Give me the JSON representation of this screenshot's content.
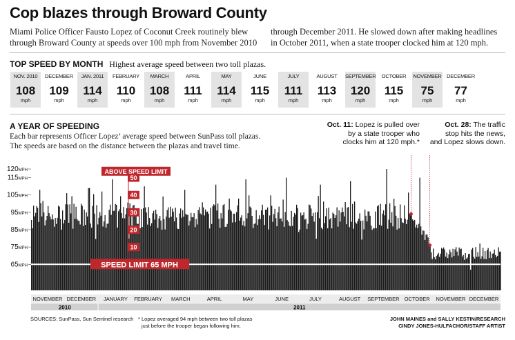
{
  "headline": "Cop blazes through Broward County",
  "intro_col1_line1": "Miami Police Officer Fausto Lopez of Coconut Creek routinely blew",
  "intro_col1_line2": "through Broward County at speeds over 100 mph from November 2010",
  "intro_col2_line1": "through December 2011. He slowed down after making headlines",
  "intro_col2_line2": "in October 2011, when a state trooper clocked him at 120 mph.",
  "top_speed": {
    "title": "TOP SPEED BY MONTH",
    "subtitle": "Highest average speed between two toll plazas.",
    "unit": "mph",
    "months": [
      {
        "label": "NOV. 2010",
        "value": "108"
      },
      {
        "label": "DECEMBER",
        "value": "109"
      },
      {
        "label": "JAN. 2011",
        "value": "114"
      },
      {
        "label": "FEBRUARY",
        "value": "110"
      },
      {
        "label": "MARCH",
        "value": "108"
      },
      {
        "label": "APRIL",
        "value": "111"
      },
      {
        "label": "MAY",
        "value": "114"
      },
      {
        "label": "JUNE",
        "value": "115"
      },
      {
        "label": "JULY",
        "value": "111"
      },
      {
        "label": "AUGUST",
        "value": "113"
      },
      {
        "label": "SEPTEMBER",
        "value": "120"
      },
      {
        "label": "OCTOBER",
        "value": "115"
      },
      {
        "label": "NOVEMBER",
        "value": "75"
      },
      {
        "label": "DECEMBER",
        "value": "77"
      }
    ]
  },
  "year_section": {
    "title": "A YEAR OF SPEEDING",
    "desc_line1": "Each bar represents Officer Lopez’ average speed between SunPass toll plazas.",
    "desc_line2": "The speeds are based on the distance between the plazas and travel time."
  },
  "annotations": {
    "oct11_bold": "Oct. 11:",
    "oct11_l1": " Lopez is pulled over",
    "oct11_l2": "by a state trooper who",
    "oct11_l3": "clocks him at 120 mph.*",
    "oct28_bold": "Oct. 28:",
    "oct28_l1": " The traffic",
    "oct28_l2": "stop hits the news,",
    "oct28_l3": "and Lopez slows down."
  },
  "footer": {
    "sources": "SOURCES: SunPass, Sun Sentinel research",
    "note_line1": "* Lopez averaged 94 mph between two toll plazas",
    "note_line2": "just before the trooper began following him.",
    "credit_line1": "JOHN MAINES and SALLY KESTIN/RESEARCH",
    "credit_line2": "CINDY JONES-HULFACHOR/STAFF ARTIST"
  },
  "colors": {
    "bars": "#1a1a1a",
    "accent_red": "#c0272d",
    "shade": "#e3e3e3",
    "year_band": "#d0d0d0"
  },
  "chart_data": {
    "type": "bar",
    "title": "A YEAR OF SPEEDING",
    "y_tick_labels": [
      "120 MPH",
      "115 MPH",
      "105 MPH",
      "95 MPH",
      "85 MPH",
      "75 MPH",
      "65 MPH"
    ],
    "y_ticks": [
      120,
      115,
      105,
      95,
      85,
      75,
      65
    ],
    "ylim": [
      50,
      122
    ],
    "x_period": [
      "2010-11-01",
      "2011-12-31"
    ],
    "month_labels": [
      "NOVEMBER",
      "DECEMBER",
      "JANUARY",
      "FEBRUARY",
      "MARCH",
      "APRIL",
      "MAY",
      "JUNE",
      "JULY",
      "AUGUST",
      "SEPTEMBER",
      "OCTOBER",
      "NOVEMBER",
      "DECEMBER"
    ],
    "year_labels": [
      "2010",
      "2011"
    ],
    "speed_limit": {
      "value": 65,
      "label": "SPEED LIMIT 65 MPH"
    },
    "above_limit_scale": {
      "label": "ABOVE SPEED LIMIT",
      "ticks": [
        "50",
        "40",
        "30",
        "20",
        "10"
      ],
      "values": [
        115,
        105,
        95,
        85,
        75
      ]
    },
    "events": [
      {
        "date": "2011-10-11",
        "value": 94,
        "label": "Oct. 11"
      },
      {
        "date": "2011-10-28",
        "value": 76,
        "label": "Oct. 28"
      }
    ],
    "monthly_max": [
      {
        "month": "2010-11",
        "value": 108
      },
      {
        "month": "2010-12",
        "value": 109
      },
      {
        "month": "2011-01",
        "value": 114
      },
      {
        "month": "2011-02",
        "value": 110
      },
      {
        "month": "2011-03",
        "value": 108
      },
      {
        "month": "2011-04",
        "value": 111
      },
      {
        "month": "2011-05",
        "value": 114
      },
      {
        "month": "2011-06",
        "value": 115
      },
      {
        "month": "2011-07",
        "value": 111
      },
      {
        "month": "2011-08",
        "value": 113
      },
      {
        "month": "2011-09",
        "value": 120
      },
      {
        "month": "2011-10",
        "value": 115
      },
      {
        "month": "2011-11",
        "value": 75
      },
      {
        "month": "2011-12",
        "value": 77
      }
    ],
    "typical_range_before_oct28": [
      85,
      100
    ],
    "typical_range_after_oct28": [
      68,
      75
    ]
  }
}
